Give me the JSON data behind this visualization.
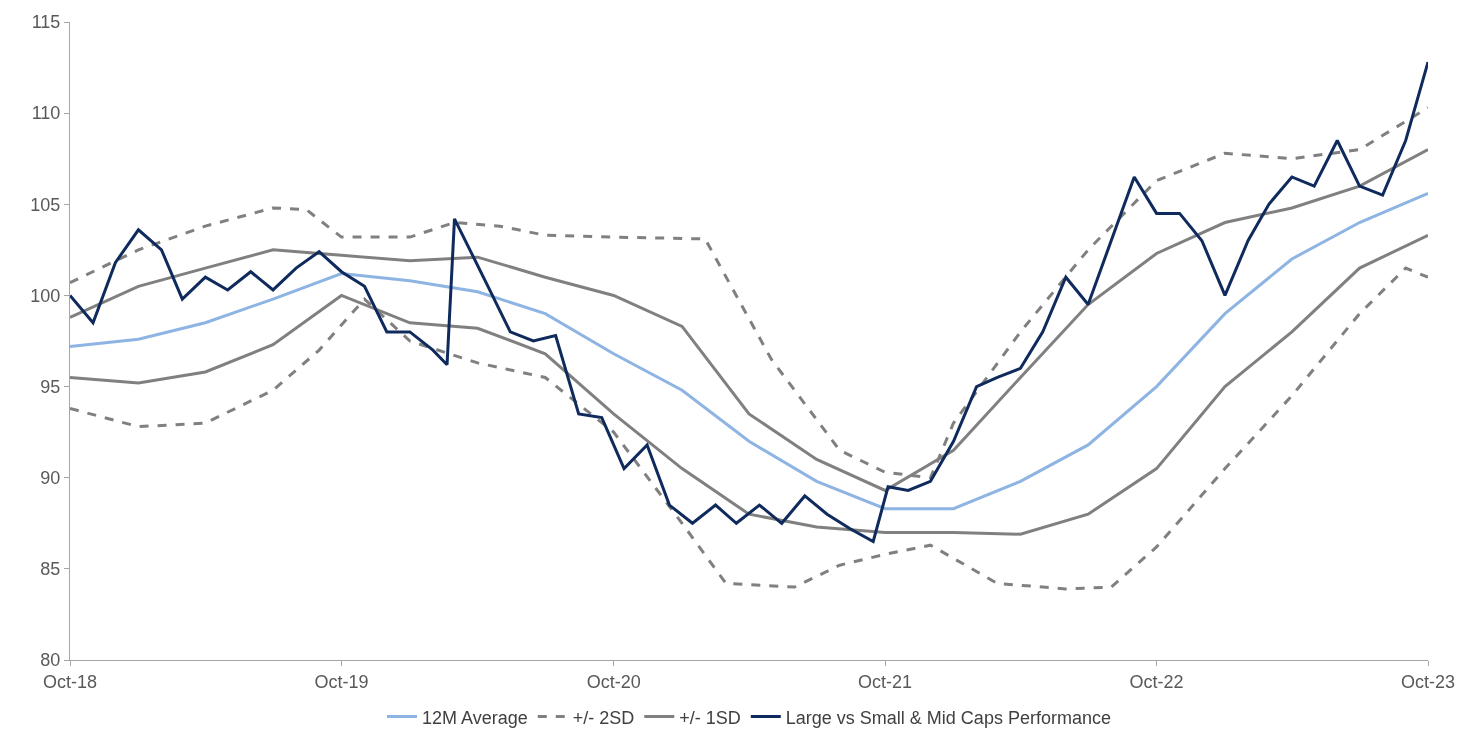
{
  "chart_data": {
    "type": "line",
    "xlim": [
      "2018-10-01",
      "2023-10-01"
    ],
    "xticks": [
      {
        "value": "2018-10-01",
        "label": "Oct-18"
      },
      {
        "value": "2019-10-01",
        "label": "Oct-19"
      },
      {
        "value": "2020-10-01",
        "label": "Oct-20"
      },
      {
        "value": "2021-10-01",
        "label": "Oct-21"
      },
      {
        "value": "2022-10-01",
        "label": "Oct-22"
      },
      {
        "value": "2023-10-01",
        "label": "Oct-23"
      }
    ],
    "ylim": [
      80,
      115
    ],
    "yticks": [
      80,
      85,
      90,
      95,
      100,
      105,
      110,
      115
    ],
    "legend": "bottom",
    "x": [
      "2018-10-01",
      "2019-01-01",
      "2019-04-01",
      "2019-07-01",
      "2019-10-01",
      "2020-01-01",
      "2020-04-01",
      "2020-07-01",
      "2020-10-01",
      "2021-01-01",
      "2021-04-01",
      "2021-07-01",
      "2021-10-01",
      "2022-01-01",
      "2022-04-01",
      "2022-07-01",
      "2022-10-01",
      "2023-01-01",
      "2023-04-01",
      "2023-07-01",
      "2023-10-01"
    ],
    "series": [
      {
        "name": "12M Average",
        "color": "#8db4e2",
        "line_style": "solid",
        "values": [
          97.2,
          97.6,
          98.5,
          99.8,
          101.2,
          100.8,
          100.2,
          99.0,
          96.8,
          94.8,
          92.0,
          89.8,
          88.3,
          88.3,
          89.8,
          91.8,
          95.0,
          99.0,
          102.0,
          104.0,
          105.6
        ]
      },
      {
        "name": "+/- 2SD",
        "color": "#808080",
        "line_style": "dashed",
        "x": [
          "2018-10-01",
          "2019-01-01",
          "2019-04-01",
          "2019-07-01",
          "2019-08-15",
          "2019-10-01",
          "2020-01-01",
          "2020-03-01",
          "2020-05-01",
          "2020-07-01",
          "2020-10-01",
          "2021-02-01",
          "2021-05-01",
          "2021-08-01",
          "2021-10-01",
          "2021-12-01",
          "2022-01-01",
          "2022-04-01",
          "2022-07-01",
          "2022-10-01",
          "2023-01-01",
          "2023-04-01",
          "2023-07-01",
          "2023-10-01"
        ],
        "values": [
          100.7,
          102.5,
          103.8,
          104.8,
          104.7,
          103.2,
          103.2,
          104.0,
          103.8,
          103.3,
          103.2,
          103.1,
          96.5,
          91.5,
          90.3,
          90.0,
          93.0,
          98.0,
          102.5,
          106.3,
          107.8,
          107.5,
          108.0,
          110.3
        ]
      },
      {
        "color": "#808080",
        "line_style": "dashed",
        "x": [
          "2018-10-01",
          "2019-01-01",
          "2019-04-01",
          "2019-07-01",
          "2019-09-01",
          "2019-11-01",
          "2020-01-01",
          "2020-04-01",
          "2020-07-01",
          "2020-10-01",
          "2021-01-01",
          "2021-03-01",
          "2021-06-01",
          "2021-08-01",
          "2021-10-01",
          "2021-12-01",
          "2022-03-01",
          "2022-06-01",
          "2022-08-01",
          "2022-10-01",
          "2023-01-01",
          "2023-04-01",
          "2023-07-01",
          "2023-09-01",
          "2023-10-01"
        ],
        "values": [
          93.8,
          92.8,
          93.0,
          94.8,
          97.0,
          99.8,
          97.5,
          96.3,
          95.5,
          92.5,
          87.5,
          84.2,
          84.0,
          85.2,
          85.8,
          86.3,
          84.2,
          83.9,
          84.0,
          86.2,
          90.5,
          94.5,
          99.0,
          101.5,
          101.0
        ]
      },
      {
        "name": "+/- 1SD",
        "color": "#808080",
        "line_style": "solid",
        "values": [
          98.8,
          100.5,
          101.5,
          102.5,
          102.2,
          101.9,
          102.1,
          101.0,
          100.0,
          98.3,
          93.5,
          91.0,
          89.3,
          91.5,
          95.5,
          99.5,
          102.3,
          104.0,
          104.8,
          106.0,
          108.0
        ]
      },
      {
        "color": "#808080",
        "line_style": "solid",
        "values": [
          95.5,
          95.2,
          95.8,
          97.3,
          100.0,
          98.5,
          98.2,
          96.8,
          93.5,
          90.5,
          88.0,
          87.3,
          87.0,
          87.0,
          86.9,
          88.0,
          90.5,
          95.0,
          98.0,
          101.5,
          103.3
        ]
      },
      {
        "name": "Large vs Small & Mid Caps Performance",
        "color": "#0f2a5c",
        "line_style": "solid",
        "x": [
          "2018-10-01",
          "2018-11-01",
          "2018-12-01",
          "2019-01-01",
          "2019-02-01",
          "2019-03-01",
          "2019-04-01",
          "2019-05-01",
          "2019-06-01",
          "2019-07-01",
          "2019-08-01",
          "2019-09-01",
          "2019-10-01",
          "2019-11-01",
          "2019-12-01",
          "2020-01-01",
          "2020-02-01",
          "2020-02-20",
          "2020-03-01",
          "2020-04-15",
          "2020-05-15",
          "2020-06-15",
          "2020-07-15",
          "2020-08-15",
          "2020-09-15",
          "2020-10-15",
          "2020-11-15",
          "2020-12-15",
          "2021-01-15",
          "2021-02-15",
          "2021-03-15",
          "2021-04-15",
          "2021-05-15",
          "2021-06-15",
          "2021-07-15",
          "2021-08-15",
          "2021-09-15",
          "2021-10-05",
          "2021-11-01",
          "2021-12-01",
          "2022-01-01",
          "2022-02-01",
          "2022-03-01",
          "2022-04-01",
          "2022-05-01",
          "2022-06-01",
          "2022-07-01",
          "2022-08-01",
          "2022-09-01",
          "2022-10-01",
          "2022-11-01",
          "2022-12-01",
          "2023-01-01",
          "2023-02-01",
          "2023-03-01",
          "2023-04-01",
          "2023-05-01",
          "2023-06-01",
          "2023-07-01",
          "2023-08-01",
          "2023-09-01",
          "2023-10-01"
        ],
        "values": [
          100.0,
          98.5,
          101.8,
          103.6,
          102.5,
          99.8,
          101.0,
          100.3,
          101.3,
          100.3,
          101.5,
          102.4,
          101.3,
          100.5,
          98.0,
          98.0,
          97.0,
          96.2,
          104.2,
          100.5,
          98.0,
          97.5,
          97.8,
          93.5,
          93.3,
          90.5,
          91.8,
          88.5,
          87.5,
          88.5,
          87.5,
          88.5,
          87.5,
          89.0,
          88.0,
          87.2,
          86.5,
          89.5,
          89.3,
          89.8,
          92.0,
          95.0,
          95.5,
          96.0,
          98.0,
          101.0,
          99.5,
          103.0,
          106.5,
          104.5,
          104.5,
          103.0,
          100.0,
          103.0,
          105.0,
          106.5,
          106.0,
          108.5,
          106.0,
          105.5,
          108.5,
          112.8
        ]
      }
    ]
  }
}
